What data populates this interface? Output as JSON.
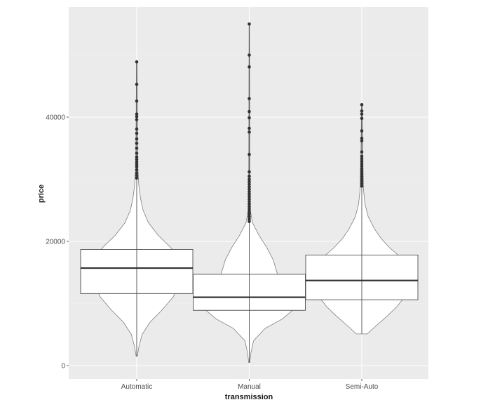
{
  "chart_data": {
    "type": "violin+box",
    "title": "",
    "xlabel": "transmission",
    "ylabel": "price",
    "ylim": [
      -2200,
      57500
    ],
    "yticks": [
      0,
      20000,
      40000
    ],
    "ytick_labels": [
      "0",
      "20000",
      "40000"
    ],
    "grid": true,
    "legend": null,
    "categories": [
      "Automatic",
      "Manual",
      "Semi-Auto"
    ],
    "boxes": [
      {
        "category": "Automatic",
        "min": 1500,
        "q1": 11600,
        "median": 15700,
        "q3": 18700,
        "whisker_high": 30000,
        "max": 48900,
        "outliers": [
          30200,
          30600,
          31000,
          31500,
          32000,
          32400,
          32800,
          33200,
          33600,
          34200,
          35000,
          35800,
          36500,
          37400,
          38100,
          39600,
          40100,
          40500,
          42600,
          45300,
          48900
        ]
      },
      {
        "category": "Manual",
        "min": 500,
        "q1": 8900,
        "median": 11000,
        "q3": 14700,
        "whisker_high": 23000,
        "max": 55000,
        "outliers": [
          23200,
          23600,
          24000,
          24400,
          24800,
          25200,
          25600,
          26000,
          26400,
          26800,
          27200,
          27600,
          28000,
          28400,
          28800,
          29200,
          29600,
          30000,
          30500,
          31200,
          34000,
          37600,
          38200,
          39900,
          40900,
          43000,
          48100,
          50000,
          55000
        ]
      },
      {
        "category": "Semi-Auto",
        "min": 5100,
        "q1": 10600,
        "median": 13700,
        "q3": 17800,
        "whisker_high": 28500,
        "max": 42000,
        "outliers": [
          28900,
          29300,
          29700,
          30100,
          30500,
          30900,
          31300,
          31700,
          32100,
          32500,
          32900,
          33300,
          33700,
          34400,
          36200,
          36600,
          37800,
          39800,
          40500,
          41000,
          42000
        ]
      }
    ],
    "violins": [
      {
        "category": "Automatic",
        "profile": [
          [
            1500,
            0.01
          ],
          [
            3000,
            0.04
          ],
          [
            5000,
            0.1
          ],
          [
            7000,
            0.25
          ],
          [
            9000,
            0.48
          ],
          [
            11000,
            0.68
          ],
          [
            12000,
            0.74
          ],
          [
            14000,
            0.8
          ],
          [
            16000,
            0.82
          ],
          [
            18000,
            0.75
          ],
          [
            19500,
            0.58
          ],
          [
            21000,
            0.4
          ],
          [
            23000,
            0.22
          ],
          [
            25000,
            0.12
          ],
          [
            27000,
            0.07
          ],
          [
            29000,
            0.04
          ],
          [
            32000,
            0.02
          ],
          [
            40000,
            0.01
          ],
          [
            48900,
            0.005
          ]
        ]
      },
      {
        "category": "Manual",
        "profile": [
          [
            500,
            0.01
          ],
          [
            2000,
            0.03
          ],
          [
            4000,
            0.08
          ],
          [
            6000,
            0.3
          ],
          [
            7500,
            0.62
          ],
          [
            8800,
            0.8
          ],
          [
            10000,
            0.95
          ],
          [
            11000,
            0.9
          ],
          [
            12000,
            0.7
          ],
          [
            13000,
            0.58
          ],
          [
            15000,
            0.52
          ],
          [
            17000,
            0.45
          ],
          [
            19000,
            0.33
          ],
          [
            21000,
            0.18
          ],
          [
            23000,
            0.06
          ],
          [
            25000,
            0.02
          ],
          [
            30000,
            0.01
          ],
          [
            55000,
            0.004
          ]
        ]
      },
      {
        "category": "Semi-Auto",
        "profile": [
          [
            5100,
            0.1
          ],
          [
            6500,
            0.28
          ],
          [
            8000,
            0.48
          ],
          [
            9500,
            0.66
          ],
          [
            10800,
            0.78
          ],
          [
            12000,
            0.82
          ],
          [
            14000,
            0.84
          ],
          [
            16000,
            0.8
          ],
          [
            17800,
            0.68
          ],
          [
            19000,
            0.52
          ],
          [
            20500,
            0.36
          ],
          [
            22000,
            0.24
          ],
          [
            24000,
            0.12
          ],
          [
            26000,
            0.06
          ],
          [
            28500,
            0.03
          ],
          [
            35000,
            0.015
          ],
          [
            42000,
            0.005
          ]
        ]
      }
    ]
  },
  "colors": {
    "panel_bg": "#ebebeb",
    "grid_major": "#ffffff",
    "grid_minor": "#f2f2f2",
    "violin_fill": "#ffffff",
    "violin_stroke": "#7f7f7f",
    "box_stroke": "#4d4d4d",
    "median": "#333333",
    "outlier": "#333333",
    "tick_text": "#4d4d4d",
    "axis_title": "#1a1a1a"
  }
}
